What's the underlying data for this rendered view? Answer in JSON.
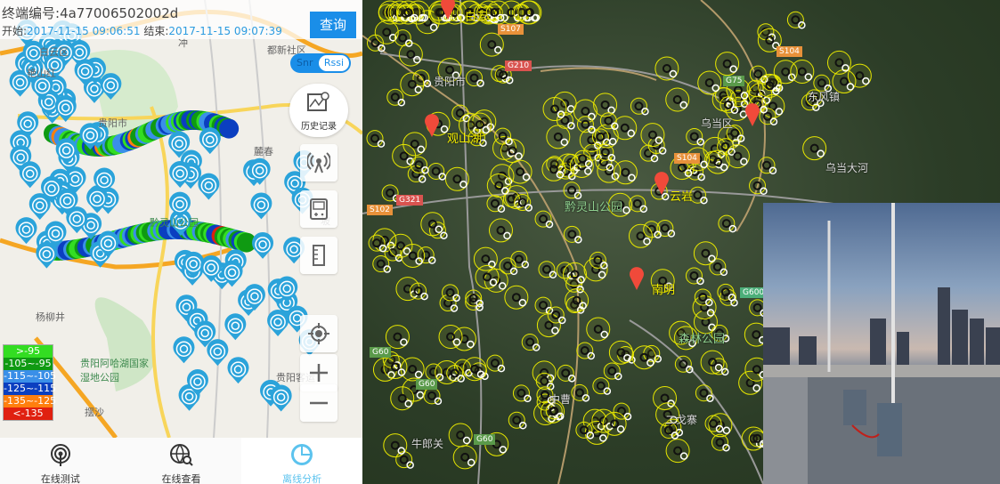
{
  "app": {
    "terminal_label": "终端编号:",
    "terminal_id": "4a77006502002d",
    "start_label": "开始:",
    "start_time": "2017-11-15 09:06:51",
    "end_label": "结束:",
    "end_time": "2017-11-15 09:07:39",
    "query_button": "查询",
    "toggle": {
      "left": "Snr",
      "right": "Rssi",
      "selected": "Rssi"
    },
    "history_button": "历史记录",
    "tools": [
      "tower-icon",
      "device-icon",
      "ruler-icon",
      "locate-icon",
      "zoom-in-icon",
      "zoom-out-icon"
    ],
    "map_labels": [
      "白云区",
      "艳山红",
      "贵阳市",
      "都新社区",
      "麓春",
      "黔灵山公园",
      "贵阳阿哈湖国家湿地公园",
      "摆沙",
      "贵阳客运",
      "杨柳井",
      "冲",
      "坡"
    ],
    "legend": [
      {
        "label": ">-95",
        "color": "#33dd22"
      },
      {
        "label": "-105~-95",
        "color": "#0f9a12"
      },
      {
        "label": "-115~-105",
        "color": "#3a8fe8"
      },
      {
        "label": "-125~-115",
        "color": "#0b3fc0"
      },
      {
        "label": "-135~-125",
        "color": "#ff7f0e"
      },
      {
        "label": "<-135",
        "color": "#e02010"
      }
    ],
    "nav": [
      {
        "label": "在线测试",
        "icon": "signal-tower-icon",
        "active": false
      },
      {
        "label": "在线查看",
        "icon": "globe-search-icon",
        "active": false
      },
      {
        "label": "离线分析",
        "icon": "pie-chart-icon",
        "active": true
      }
    ]
  },
  "satellite": {
    "labels": [
      {
        "text": "白云",
        "style": "y"
      },
      {
        "text": "贵阳市",
        "style": "w"
      },
      {
        "text": "观山湖",
        "style": "y"
      },
      {
        "text": "黔灵山公园",
        "style": "gr"
      },
      {
        "text": "乌当区",
        "style": "w"
      },
      {
        "text": "东风镇",
        "style": "w"
      },
      {
        "text": "云岩",
        "style": "y"
      },
      {
        "text": "南明",
        "style": "y"
      },
      {
        "text": "森林公园",
        "style": "gr"
      },
      {
        "text": "中曹",
        "style": "w"
      },
      {
        "text": "二戈寨",
        "style": "w"
      },
      {
        "text": "牛郎关",
        "style": "w"
      },
      {
        "text": "乌当大河",
        "style": "w"
      }
    ],
    "shields": [
      {
        "text": "S107",
        "color": "#e8913a"
      },
      {
        "text": "G210",
        "color": "#d9534f"
      },
      {
        "text": "G75",
        "color": "#5a9a4a"
      },
      {
        "text": "S104",
        "color": "#e8913a"
      },
      {
        "text": "S104",
        "color": "#e8913a"
      },
      {
        "text": "G321",
        "color": "#d9534f"
      },
      {
        "text": "S102",
        "color": "#e8913a"
      },
      {
        "text": "G600",
        "color": "#4caf7a"
      },
      {
        "text": "G60",
        "color": "#5a9a4a"
      },
      {
        "text": "G60",
        "color": "#5a9a4a"
      },
      {
        "text": "G60",
        "color": "#5a9a4a"
      }
    ]
  }
}
